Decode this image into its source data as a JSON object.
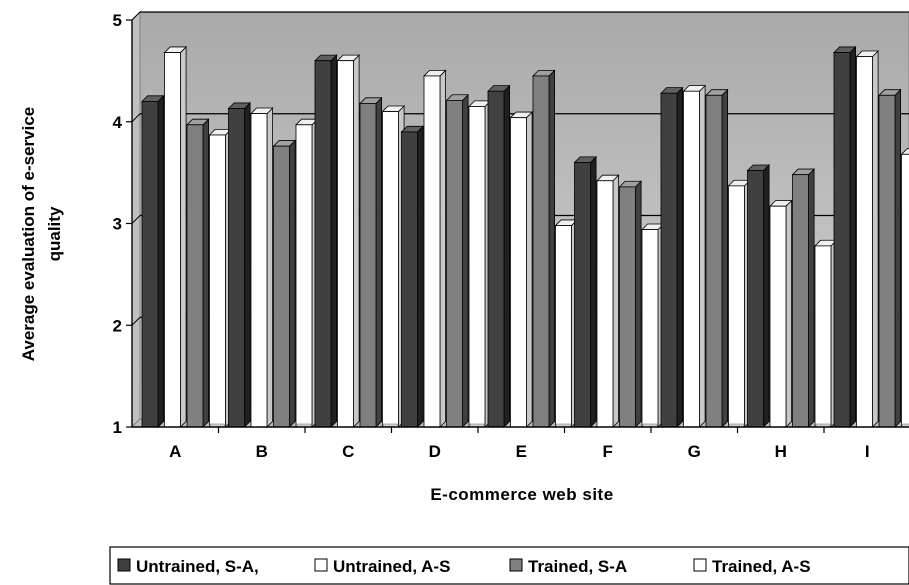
{
  "chart_data": {
    "type": "bar",
    "title": "",
    "xlabel": "E-commerce web site",
    "ylabel_lines": [
      "Average evaluation of e-service",
      "quality"
    ],
    "categories": [
      "A",
      "B",
      "C",
      "D",
      "E",
      "F",
      "G",
      "H",
      "I"
    ],
    "yticks": [
      "1",
      "2",
      "3",
      "4",
      "5"
    ],
    "ylim": [
      1,
      5
    ],
    "grid": true,
    "legend_position": "bottom",
    "series": [
      {
        "name": "Untrained, S-A,",
        "color": "#404040",
        "values": [
          4.2,
          4.13,
          4.6,
          3.9,
          4.3,
          3.6,
          4.28,
          3.52,
          4.68
        ]
      },
      {
        "name": "Untrained, A-S",
        "color": "#ffffff",
        "values": [
          4.68,
          4.08,
          4.6,
          4.45,
          4.04,
          3.42,
          4.3,
          3.17,
          4.64
        ]
      },
      {
        "name": "Trained, S-A",
        "color": "#808080",
        "values": [
          3.97,
          3.76,
          4.18,
          4.21,
          4.45,
          3.36,
          4.26,
          3.48,
          4.26
        ]
      },
      {
        "name": "Trained, A-S",
        "color": "#ffffff",
        "values": [
          3.87,
          3.97,
          4.1,
          4.15,
          2.98,
          2.94,
          3.37,
          2.78,
          3.68
        ]
      }
    ]
  }
}
